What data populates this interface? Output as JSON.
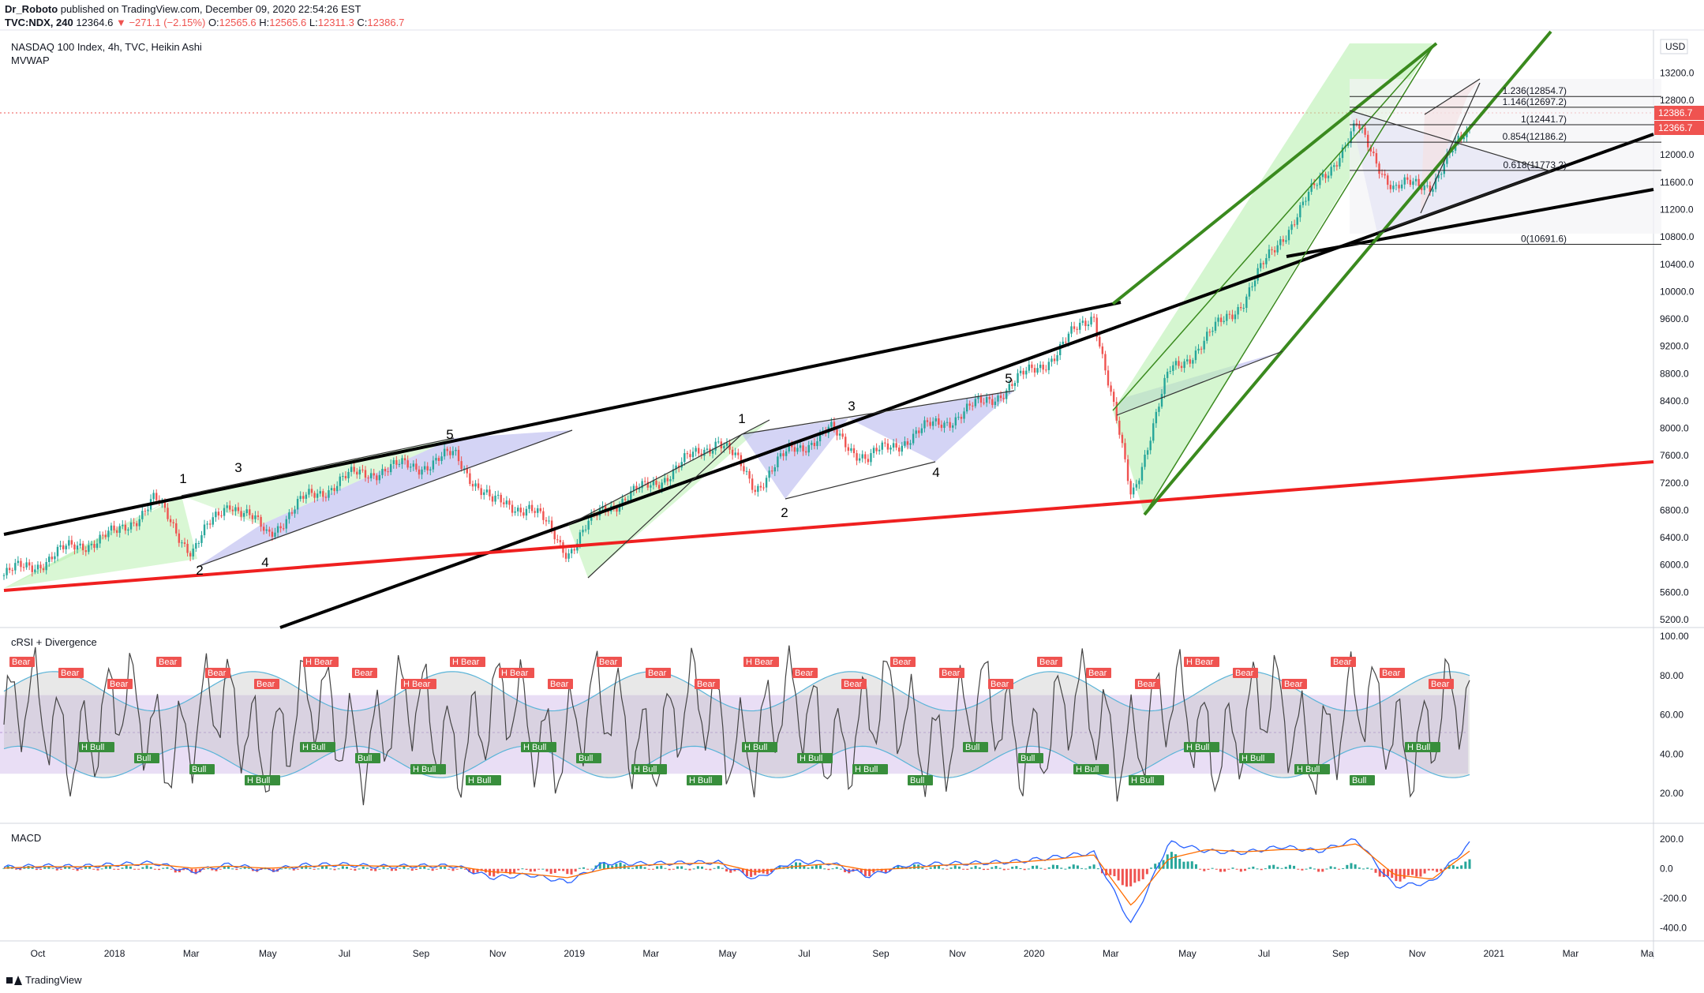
{
  "header": {
    "author": "Dr_Roboto",
    "published": "published on TradingView.com, December 09, 2020 22:54:26 EST",
    "symbol": "TVC:NDX, 240",
    "last": "12364.6",
    "change": "−271.1 (−2.15%)",
    "open_label": "O:",
    "open": "12565.6",
    "high_label": "H:",
    "high": "12565.6",
    "low_label": "L:",
    "low": "12311.3",
    "close_label": "C:",
    "close": "12386.7"
  },
  "main_pane": {
    "title": "NASDAQ 100 Index, 4h, TVC, Heikin Ashi",
    "indicator": "MVWAP",
    "currency": "USD",
    "price_badge_1": "12386.7",
    "price_badge_2": "12366.7"
  },
  "rsi_pane": {
    "title": "cRSI + Divergence"
  },
  "macd_pane": {
    "title": "MACD"
  },
  "footer": {
    "brand": "TradingView"
  },
  "colors": {
    "up": "#26a69a",
    "down": "#ef5350",
    "accent_red": "#ef2020",
    "channel_green": "#3a8a1e",
    "fill_green": "#b9f0b0",
    "fill_blue": "#b7b8ee",
    "fill_red": "#f5b5b5",
    "rsi_band": "#e3d6f2",
    "macd_line": "#2962ff",
    "signal_line": "#ff6d00"
  },
  "chart_data": [
    {
      "type": "line",
      "pane": "price",
      "title": "NASDAQ 100 Index, 4h, TVC, Heikin Ashi",
      "x_ticks": [
        "Oct",
        "2018",
        "Mar",
        "May",
        "Jul",
        "Sep",
        "Nov",
        "2019",
        "Mar",
        "May",
        "Jul",
        "Sep",
        "Nov",
        "2020",
        "Mar",
        "May",
        "Jul",
        "Sep",
        "Nov",
        "2021",
        "Mar",
        "Ma"
      ],
      "y_ticks": [
        "13200.0",
        "12800.0",
        "12000.0",
        "11600.0",
        "11200.0",
        "10800.0",
        "10400.0",
        "10000.0",
        "9600.0",
        "9200.0",
        "8800.0",
        "8400.0",
        "8000.0",
        "7600.0",
        "7200.0",
        "6800.0",
        "6400.0",
        "6000.0",
        "5600.0",
        "5200.0"
      ],
      "ylim": [
        5200,
        13400
      ],
      "series": [
        {
          "x": [
            "2017-09",
            "2017-10",
            "2017-11",
            "2017-12",
            "2018-01",
            "2018-02",
            "2018-03",
            "2018-04",
            "2018-05",
            "2018-06",
            "2018-07",
            "2018-08",
            "2018-09",
            "2018-10",
            "2018-11",
            "2018-12",
            "2019-01",
            "2019-02",
            "2019-03",
            "2019-04",
            "2019-05",
            "2019-06",
            "2019-07",
            "2019-08",
            "2019-09",
            "2019-10",
            "2019-11",
            "2019-12",
            "2020-01",
            "2020-02",
            "2020-03",
            "2020-04",
            "2020-05",
            "2020-06",
            "2020-07",
            "2020-08",
            "2020-09",
            "2020-10",
            "2020-11",
            "2020-12"
          ],
          "values": [
            5850,
            6050,
            6300,
            6450,
            6950,
            6200,
            6950,
            6450,
            6950,
            7250,
            7400,
            7450,
            7600,
            6900,
            6850,
            6200,
            6850,
            7100,
            7450,
            7850,
            7150,
            7700,
            7950,
            7550,
            7850,
            8100,
            8350,
            8700,
            9100,
            9700,
            7000,
            8800,
            9300,
            9900,
            10800,
            11600,
            12400,
            11500,
            11600,
            12387
          ]
        }
      ],
      "wave_labels": [
        "1",
        "2",
        "3",
        "4",
        "5",
        "1",
        "2",
        "3",
        "4",
        "5"
      ],
      "fib_levels": [
        {
          "label": "1.236(12854.7)",
          "value": 12854.7
        },
        {
          "label": "1.146(12697.2)",
          "value": 12697.2
        },
        {
          "label": "1(12441.7)",
          "value": 12441.7
        },
        {
          "label": "0.854(12186.2)",
          "value": 12186.2
        },
        {
          "label": "0.618(11773.2)",
          "value": 11773.2
        },
        {
          "label": "0(10691.6)",
          "value": 10691.6
        }
      ]
    },
    {
      "type": "line",
      "pane": "crsi",
      "title": "cRSI + Divergence",
      "y_ticks": [
        "100.00",
        "80.00",
        "60.00",
        "40.00",
        "20.00"
      ],
      "ylim": [
        10,
        100
      ],
      "band": [
        30,
        70
      ],
      "signals": {
        "bear": [
          "Bear",
          "Bear",
          "Bear",
          "Bear",
          "Bear",
          "Bear",
          "H Bear",
          "Bear",
          "H Bear",
          "H Bear",
          "H Bear",
          "Bear",
          "Bear",
          "Bear",
          "Bear",
          "H Bear",
          "Bear",
          "Bear",
          "Bear",
          "Bear",
          "Bear",
          "Bear",
          "Bear",
          "Bear",
          "H Bear",
          "Bear",
          "Bear",
          "Bear",
          "Bear",
          "Bear"
        ],
        "bull": [
          "H Bull",
          "Bull",
          "Bull",
          "H Bull",
          "H Bull",
          "Bull",
          "H Bull",
          "H Bull",
          "H Bull",
          "Bull",
          "H Bull",
          "H Bull",
          "H Bull",
          "H Bull",
          "H Bull",
          "Bull",
          "Bull",
          "Bull",
          "H Bull",
          "H Bull",
          "H Bull",
          "H Bull",
          "H Bull",
          "Bull",
          "H Bull"
        ]
      }
    },
    {
      "type": "bar",
      "pane": "macd",
      "title": "MACD",
      "y_ticks": [
        "200.0",
        "0.0",
        "-200.0",
        "-400.0"
      ],
      "ylim": [
        -450,
        260
      ],
      "series": [
        {
          "name": "MACD",
          "values": [
            10,
            20,
            15,
            30,
            40,
            -20,
            30,
            -10,
            25,
            30,
            15,
            20,
            20,
            -60,
            -40,
            -90,
            40,
            35,
            40,
            45,
            -70,
            50,
            40,
            -50,
            25,
            35,
            40,
            50,
            80,
            110,
            -380,
            180,
            120,
            110,
            150,
            120,
            200,
            -120,
            -90,
            170
          ]
        },
        {
          "name": "Signal",
          "values": [
            5,
            15,
            14,
            22,
            32,
            5,
            18,
            4,
            15,
            25,
            18,
            18,
            19,
            -20,
            -35,
            -60,
            0,
            25,
            35,
            40,
            -20,
            15,
            35,
            -10,
            5,
            25,
            35,
            45,
            65,
            95,
            -250,
            70,
            130,
            115,
            130,
            130,
            170,
            -40,
            -70,
            120
          ]
        }
      ]
    }
  ]
}
